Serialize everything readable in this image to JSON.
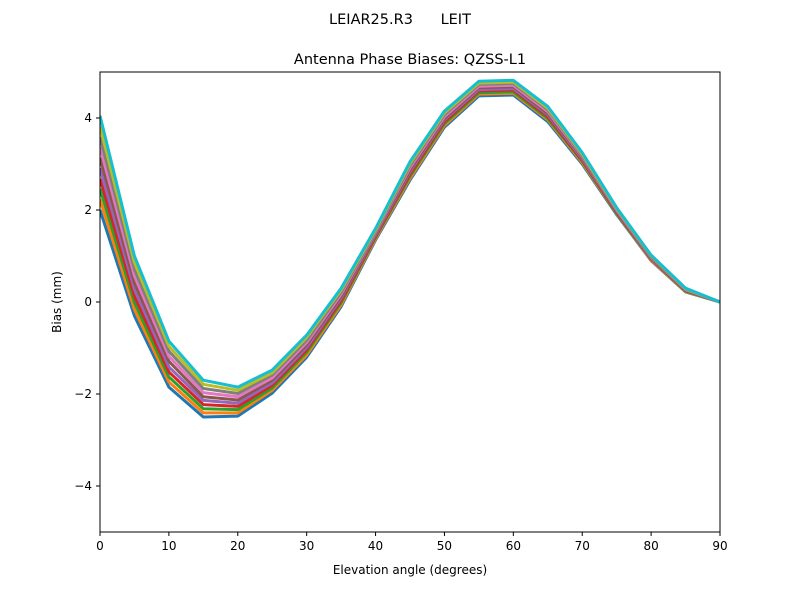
{
  "chart_data": {
    "type": "line",
    "suptitle": "LEIAR25.R3      LEIT",
    "title": "Antenna Phase Biases: QZSS-L1",
    "xlabel": "Elevation angle (degrees)",
    "ylabel": "Bias (mm)",
    "xlim": [
      0,
      90
    ],
    "ylim": [
      -5,
      5
    ],
    "xticks": [
      0,
      10,
      20,
      30,
      40,
      50,
      60,
      70,
      80,
      90
    ],
    "yticks": [
      -4,
      -2,
      0,
      2,
      4
    ],
    "ytick_labels": [
      "−4",
      "−2",
      "0",
      "2",
      "4"
    ],
    "grid": false,
    "colors": [
      "#1f77b4",
      "#ff7f0e",
      "#2ca02c",
      "#d62728",
      "#9467bd",
      "#8c564b",
      "#e377c2",
      "#7f7f7f",
      "#bcbd22",
      "#17becf"
    ],
    "x": [
      0,
      5,
      10,
      15,
      20,
      25,
      30,
      35,
      40,
      45,
      50,
      55,
      60,
      65,
      70,
      75,
      80,
      85,
      90
    ],
    "series": [
      {
        "values": [
          2.0,
          -0.3,
          -1.85,
          -2.5,
          -2.48,
          -1.98,
          -1.2,
          -0.1,
          1.35,
          2.65,
          3.8,
          4.48,
          4.5,
          3.92,
          3.0,
          1.9,
          0.9,
          0.22,
          0
        ]
      },
      {
        "values": [
          2.23,
          -0.16,
          -1.74,
          -2.41,
          -2.41,
          -1.92,
          -1.15,
          -0.06,
          1.38,
          2.69,
          3.84,
          4.52,
          4.54,
          3.96,
          3.03,
          1.92,
          0.91,
          0.23,
          0
        ]
      },
      {
        "values": [
          2.46,
          -0.01,
          -1.63,
          -2.32,
          -2.34,
          -1.87,
          -1.09,
          -0.01,
          1.41,
          2.74,
          3.88,
          4.55,
          4.57,
          3.99,
          3.06,
          1.93,
          0.93,
          0.24,
          0
        ]
      },
      {
        "values": [
          2.68,
          0.13,
          -1.52,
          -2.23,
          -2.27,
          -1.81,
          -1.04,
          0.03,
          1.43,
          2.78,
          3.92,
          4.59,
          4.61,
          4.03,
          3.08,
          1.95,
          0.94,
          0.25,
          0
        ]
      },
      {
        "values": [
          2.91,
          0.28,
          -1.41,
          -2.14,
          -2.2,
          -1.76,
          -0.99,
          0.08,
          1.46,
          2.83,
          3.96,
          4.62,
          4.64,
          4.07,
          3.11,
          1.97,
          0.95,
          0.26,
          0
        ]
      },
      {
        "values": [
          3.14,
          0.42,
          -1.29,
          -2.06,
          -2.13,
          -1.7,
          -0.93,
          0.12,
          1.49,
          2.87,
          3.99,
          4.66,
          4.68,
          4.1,
          3.14,
          1.98,
          0.97,
          0.26,
          0
        ]
      },
      {
        "values": [
          3.37,
          0.57,
          -1.18,
          -1.97,
          -2.06,
          -1.65,
          -0.88,
          0.17,
          1.52,
          2.92,
          4.03,
          4.69,
          4.71,
          4.14,
          3.17,
          2.0,
          0.98,
          0.27,
          0
        ]
      },
      {
        "values": [
          3.59,
          0.71,
          -1.07,
          -1.88,
          -1.99,
          -1.59,
          -0.83,
          0.21,
          1.54,
          2.96,
          4.07,
          4.73,
          4.75,
          4.18,
          3.19,
          2.02,
          0.99,
          0.28,
          0
        ]
      },
      {
        "values": [
          3.82,
          0.86,
          -0.96,
          -1.79,
          -1.92,
          -1.54,
          -0.77,
          0.26,
          1.57,
          3.01,
          4.11,
          4.76,
          4.78,
          4.21,
          3.22,
          2.03,
          1.01,
          0.29,
          0
        ]
      },
      {
        "values": [
          4.05,
          1.0,
          -0.85,
          -1.7,
          -1.85,
          -1.48,
          -0.72,
          0.3,
          1.6,
          3.05,
          4.15,
          4.8,
          4.82,
          4.25,
          3.25,
          2.05,
          1.02,
          0.3,
          0
        ]
      }
    ]
  }
}
